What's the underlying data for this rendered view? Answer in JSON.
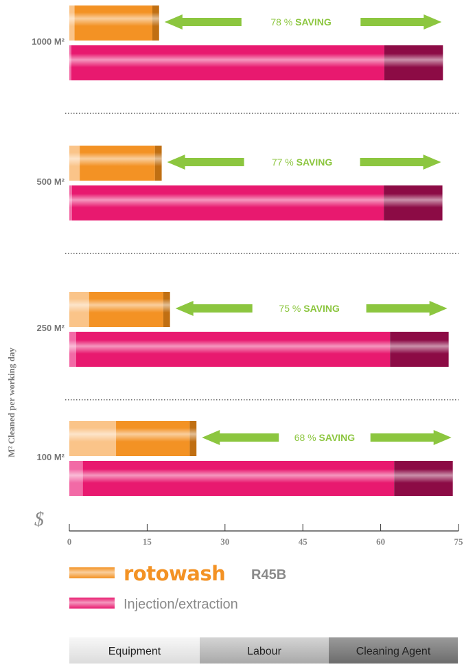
{
  "colors": {
    "rotowash": "#f39224",
    "rotowash_light": "#fac489",
    "rotowash_dark": "#c06f12",
    "injection": "#e8196f",
    "injection_light": "#f26aa6",
    "injection_dark": "#8c0b45",
    "arrow": "#8cc63f",
    "saving_text": "#8cc63f",
    "axis": "#333333",
    "label_gray": "#777777"
  },
  "chart_data": {
    "type": "bar",
    "orientation": "horizontal",
    "stacked": true,
    "ylabel": "M² Cleaned per working day",
    "currency_symbol": "$",
    "xlim": [
      0,
      75
    ],
    "xticks": [
      0,
      15,
      30,
      45,
      60,
      75
    ],
    "stack_components": [
      "Equipment",
      "Labour",
      "Cleaning Agent"
    ],
    "groups": [
      {
        "label": "1000 M²",
        "saving_value": "78 %",
        "saving_word": "SAVING",
        "rotowash": [
          1.0,
          15.0,
          1.3
        ],
        "injection": [
          0.4,
          60.3,
          11.3
        ]
      },
      {
        "label": "500 M²",
        "saving_value": "77 %",
        "saving_word": "SAVING",
        "rotowash": [
          2.0,
          14.5,
          1.3
        ],
        "injection": [
          0.5,
          60.1,
          11.3
        ]
      },
      {
        "label": "250 M²",
        "saving_value": "75 %",
        "saving_word": "SAVING",
        "rotowash": [
          3.8,
          14.3,
          1.3
        ],
        "injection": [
          1.3,
          60.5,
          11.3
        ]
      },
      {
        "label": "100 M²",
        "saving_value": "68 %",
        "saving_word": "SAVING",
        "rotowash": [
          9.0,
          14.2,
          1.3
        ],
        "injection": [
          2.6,
          60.0,
          11.3
        ]
      }
    ]
  },
  "legend": {
    "rotowash_brand": "rotowash",
    "rotowash_model": "R45B",
    "injection_label": "Injection/extraction"
  },
  "components_legend": [
    "Equipment",
    "Labour",
    "Cleaning Agent"
  ]
}
